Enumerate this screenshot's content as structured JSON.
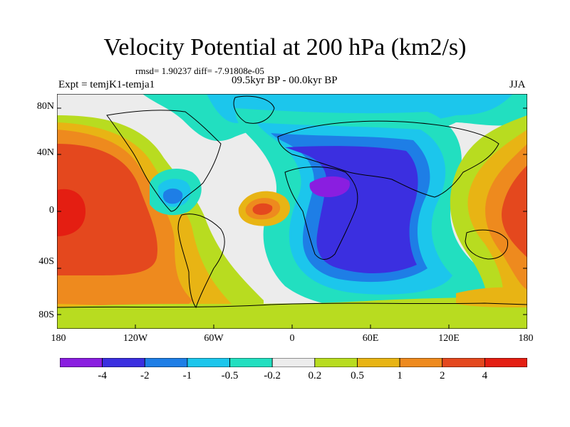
{
  "title": "Velocity Potential at 200 hPa (km2/s)",
  "stats": "rmsd= 1.90237 diff= -7.91808e-05",
  "experiment": "Expt = temjK1-temja1",
  "period": "09.5kyr BP - 00.0kyr BP",
  "season": "JJA",
  "axes": {
    "lat_ticks": [
      "80N",
      "40N",
      "0",
      "40S",
      "80S"
    ],
    "lon_ticks": [
      "180",
      "120W",
      "60W",
      "0",
      "60E",
      "120E",
      "180"
    ]
  },
  "colorbar": {
    "labels": [
      "-4",
      "-2",
      "-1",
      "-0.5",
      "-0.2",
      "0.2",
      "0.5",
      "1",
      "2",
      "4"
    ],
    "colors": [
      "#8a1ee0",
      "#3b2fe0",
      "#1e7ee6",
      "#1cc6ec",
      "#22dfc0",
      "#ececec",
      "#b8dc20",
      "#e8b414",
      "#ee8a1e",
      "#e4481e",
      "#e41e12"
    ]
  },
  "palette": {
    "ocean_outline": "#000000",
    "neg4": "#8a1ee0",
    "neg2": "#3b2fe0",
    "neg1": "#1e7ee6",
    "neg05": "#1cc6ec",
    "neg02": "#22dfc0",
    "zero": "#ececec",
    "pos02": "#b8dc20",
    "pos05": "#e8b414",
    "pos1": "#ee8a1e",
    "pos2": "#e4481e",
    "pos4": "#e41e12"
  }
}
